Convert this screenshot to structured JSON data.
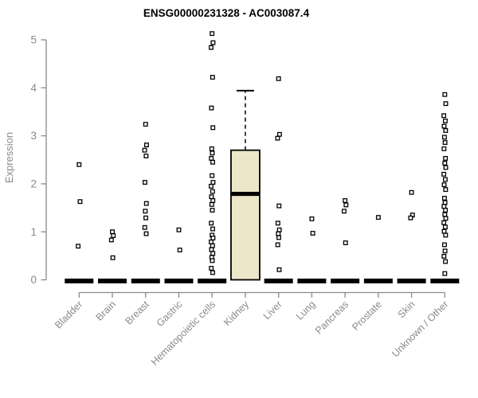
{
  "chart_data": {
    "type": "boxplot",
    "title": "ENSG00000231328 - AC003087.4",
    "ylabel": "Expression",
    "xlabel": "",
    "ylim": [
      0,
      5.2
    ],
    "yticks": [
      0,
      1,
      2,
      3,
      4,
      5
    ],
    "grid": false,
    "legend": "none",
    "point_symbol": "open-square",
    "categories": [
      "Bladder",
      "Brain",
      "Breast",
      "Gastric",
      "Hematopoietic cells",
      "Kidney",
      "Liver",
      "Lung",
      "Pancreas",
      "Prostate",
      "Skin",
      "Unknown / Other"
    ],
    "boxes": [
      {
        "category": "Bladder",
        "q1": 0,
        "median": 0,
        "q3": 0,
        "whisker_low": 0,
        "whisker_high": 0,
        "points": [
          2.4,
          1.63,
          0.7
        ]
      },
      {
        "category": "Brain",
        "q1": 0,
        "median": 0,
        "q3": 0,
        "whisker_low": 0,
        "whisker_high": 0,
        "points": [
          1.0,
          0.92,
          0.83,
          0.46
        ]
      },
      {
        "category": "Breast",
        "q1": 0,
        "median": 0,
        "q3": 0,
        "whisker_low": 0,
        "whisker_high": 0,
        "points": [
          3.24,
          2.81,
          2.7,
          2.58,
          2.03,
          1.59,
          1.43,
          1.29,
          1.09,
          0.96
        ]
      },
      {
        "category": "Gastric",
        "q1": 0,
        "median": 0,
        "q3": 0,
        "whisker_low": 0,
        "whisker_high": 0,
        "points": [
          1.04,
          0.62
        ]
      },
      {
        "category": "Hematopoietic cells",
        "q1": 0,
        "median": 0,
        "q3": 0,
        "whisker_low": 0,
        "whisker_high": 0,
        "points": [
          5.13,
          4.94,
          4.84,
          4.22,
          3.58,
          3.17,
          2.73,
          2.64,
          2.53,
          2.45,
          2.17,
          2.03,
          1.95,
          1.84,
          1.73,
          1.65,
          1.57,
          1.45,
          1.18,
          1.06,
          0.93,
          0.87,
          0.79,
          0.71,
          0.63,
          0.55,
          0.47,
          0.4,
          0.24,
          0.15
        ]
      },
      {
        "category": "Kidney",
        "q1": 0,
        "median": 1.79,
        "q3": 2.7,
        "whisker_low": 0,
        "whisker_high": 3.94,
        "points": []
      },
      {
        "category": "Liver",
        "q1": 0,
        "median": 0,
        "q3": 0,
        "whisker_low": 0,
        "whisker_high": 0,
        "points": [
          4.19,
          3.03,
          2.95,
          1.54,
          1.18,
          1.04,
          0.96,
          0.88,
          0.73,
          0.21
        ]
      },
      {
        "category": "Lung",
        "q1": 0,
        "median": 0,
        "q3": 0,
        "whisker_low": 0,
        "whisker_high": 0,
        "points": [
          1.27,
          0.97
        ]
      },
      {
        "category": "Pancreas",
        "q1": 0,
        "median": 0,
        "q3": 0,
        "whisker_low": 0,
        "whisker_high": 0,
        "points": [
          1.65,
          1.56,
          1.43,
          0.77
        ]
      },
      {
        "category": "Prostate",
        "q1": 0,
        "median": 0,
        "q3": 0,
        "whisker_low": 0,
        "whisker_high": 0,
        "points": [
          1.3
        ]
      },
      {
        "category": "Skin",
        "q1": 0,
        "median": 0,
        "q3": 0,
        "whisker_low": 0,
        "whisker_high": 0,
        "points": [
          1.82,
          1.35,
          1.29
        ]
      },
      {
        "category": "Unknown / Other",
        "q1": 0,
        "median": 0,
        "q3": 0,
        "whisker_low": 0,
        "whisker_high": 0,
        "points": [
          3.86,
          3.67,
          3.42,
          3.31,
          3.2,
          3.11,
          2.97,
          2.86,
          2.73,
          2.53,
          2.43,
          2.34,
          2.2,
          2.09,
          1.98,
          1.88,
          1.7,
          1.61,
          1.53,
          1.45,
          1.36,
          1.28,
          1.19,
          1.1,
          1.01,
          0.93,
          0.73,
          0.6,
          0.49,
          0.38,
          0.13
        ]
      }
    ],
    "colors": {
      "background": "#ffffff",
      "title_color": "#000000",
      "axis_color": "#8a8a8a",
      "label_color": "#8a8a8a",
      "box_fill": "#ece7c9",
      "box_stroke": "#000000",
      "median_color": "#000000",
      "point_stroke": "#000000",
      "point_fill": "#ffffff"
    }
  }
}
